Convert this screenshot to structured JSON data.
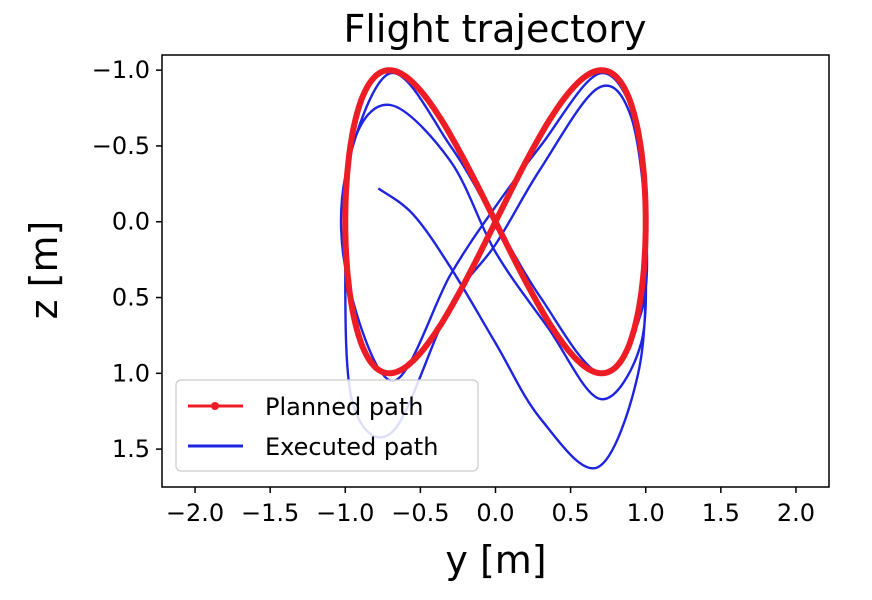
{
  "chart_data": {
    "type": "line",
    "title": "Flight trajectory",
    "xlabel": "y [m]",
    "ylabel": "z [m]",
    "xlim": [
      -2.22,
      2.22
    ],
    "ylim": [
      -1.1,
      1.75
    ],
    "y_inverted": true,
    "xticks": [
      -2.0,
      -1.5,
      -1.0,
      -0.5,
      0.0,
      0.5,
      1.0,
      1.5,
      2.0
    ],
    "xtick_labels": [
      "−2.0",
      "−1.5",
      "−1.0",
      "−0.5",
      "0.0",
      "0.5",
      "1.0",
      "1.5",
      "2.0"
    ],
    "yticks": [
      -1.0,
      -0.5,
      0.0,
      0.5,
      1.0,
      1.5
    ],
    "ytick_labels": [
      "−1.0",
      "−0.5",
      "0.0",
      "0.5",
      "1.0",
      "1.5"
    ],
    "grid": false,
    "legend_position": "lower-left",
    "series": [
      {
        "name": "Planned path",
        "color": "#ee1c25",
        "marker": "dot",
        "curve": "figure-eight",
        "y_amplitude": 1.0,
        "z_amplitude": 1.0,
        "turns": 1
      },
      {
        "name": "Executed path",
        "color": "#1f24e0",
        "marker": "none",
        "curve": "figure-eight",
        "turns": 2.1,
        "start": [
          -0.78,
          -0.22
        ],
        "points": [
          [
            -0.78,
            -0.22
          ],
          [
            -0.55,
            -0.05
          ],
          [
            -0.3,
            0.3
          ],
          [
            0.0,
            0.8
          ],
          [
            0.3,
            1.3
          ],
          [
            0.68,
            1.62
          ],
          [
            0.95,
            1.0
          ],
          [
            1.0,
            0.2
          ],
          [
            0.95,
            -0.6
          ],
          [
            0.7,
            -0.98
          ],
          [
            0.3,
            -0.5
          ],
          [
            0.0,
            -0.1
          ],
          [
            -0.3,
            0.35
          ],
          [
            -0.68,
            1.05
          ],
          [
            -0.98,
            0.4
          ],
          [
            -1.0,
            -0.3
          ],
          [
            -0.7,
            -0.98
          ],
          [
            -0.3,
            -0.5
          ],
          [
            0.0,
            0.0
          ],
          [
            0.3,
            0.5
          ],
          [
            0.7,
            1.0
          ],
          [
            0.97,
            0.6
          ],
          [
            1.0,
            0.0
          ],
          [
            0.9,
            -0.7
          ],
          [
            0.68,
            -0.88
          ],
          [
            0.3,
            -0.35
          ],
          [
            0.0,
            0.15
          ],
          [
            -0.3,
            0.55
          ],
          [
            -0.68,
            1.38
          ],
          [
            -0.95,
            1.2
          ],
          [
            -1.0,
            0.3
          ],
          [
            -0.95,
            -0.5
          ],
          [
            -0.7,
            -0.77
          ],
          [
            -0.3,
            -0.4
          ],
          [
            0.0,
            0.2
          ],
          [
            0.35,
            0.7
          ],
          [
            0.7,
            1.17
          ],
          [
            0.97,
            0.8
          ],
          [
            1.0,
            0.12
          ]
        ]
      }
    ]
  }
}
